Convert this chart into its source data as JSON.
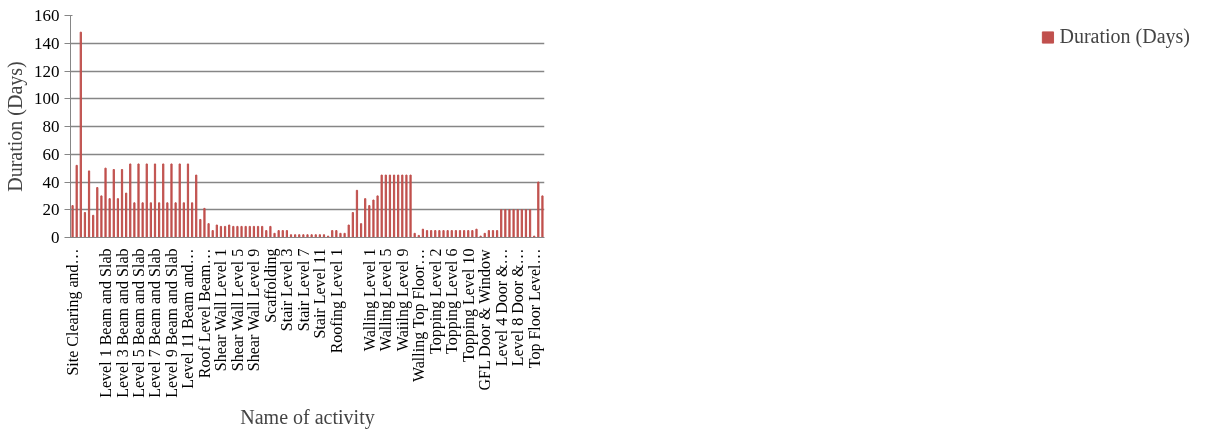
{
  "chart_data": {
    "type": "bar",
    "xlabel": "Name of activity",
    "ylabel": "Duration (Days)",
    "categories": [
      "Site Clearing and…",
      null,
      null,
      null,
      null,
      null,
      null,
      null,
      "Level 1 Beam and Slab",
      null,
      null,
      null,
      "Level 3 Beam and Slab",
      null,
      null,
      null,
      "Level 5 Beam and Slab",
      null,
      null,
      null,
      "Level 7 Beam and Slab",
      null,
      null,
      null,
      "Level 9 Beam and Slab",
      null,
      null,
      null,
      "Level 11 Beam and…",
      null,
      null,
      null,
      "Roof Level Beam…",
      null,
      null,
      null,
      "Shear Wall Level 1",
      null,
      null,
      null,
      "Shear Wall Level 5",
      null,
      null,
      null,
      "Shear Wall Level 9",
      null,
      null,
      null,
      "Scaffolding",
      null,
      null,
      null,
      "Stair Level 3",
      null,
      null,
      null,
      "Stair Level 7",
      null,
      null,
      null,
      "Stair Level 11",
      null,
      null,
      null,
      "Roofing Level 1",
      null,
      null,
      null,
      null,
      null,
      null,
      null,
      "Walling Level 1",
      null,
      null,
      null,
      "Walling Level 5",
      null,
      null,
      null,
      "Waiilng Level 9",
      null,
      null,
      null,
      "Walling Top Floor…",
      null,
      null,
      null,
      "Topping Level 2",
      null,
      null,
      null,
      "Topping Level 6",
      null,
      null,
      null,
      "Topping Level 10",
      null,
      null,
      null,
      "GFL Door & Window",
      null,
      null,
      null,
      "Level 4 Door &…",
      null,
      null,
      null,
      "Level 8 Door &…",
      null,
      null,
      null,
      "Top Floor Level…",
      null,
      null
    ],
    "series": [
      {
        "name": "Duration (Days)",
        "color": "#c0504d",
        "values": [
          23,
          52,
          148,
          18,
          48,
          16,
          36,
          30,
          50,
          28,
          49,
          28,
          49,
          32,
          53,
          25,
          53,
          25,
          53,
          25,
          53,
          25,
          53,
          25,
          53,
          25,
          53,
          25,
          53,
          25,
          45,
          13,
          21,
          10,
          5,
          9,
          8,
          8,
          9,
          8,
          8,
          8,
          8,
          8,
          8,
          8,
          8,
          5,
          8,
          3,
          5,
          5,
          5,
          2,
          2,
          2,
          2,
          2,
          2,
          2,
          2,
          2,
          1,
          5,
          5,
          3,
          3,
          9,
          18,
          34,
          10,
          28,
          23,
          27,
          30,
          45,
          45,
          45,
          45,
          45,
          45,
          45,
          45,
          3,
          1.5,
          6,
          5,
          5,
          5,
          5,
          5,
          5,
          5,
          5,
          5,
          5,
          5,
          5,
          6,
          1,
          3,
          5,
          5,
          5,
          20,
          20,
          20,
          20,
          20,
          20,
          20,
          20,
          1,
          40,
          30
        ]
      }
    ],
    "ylim": [
      0,
      160
    ],
    "yticks": [
      0,
      20,
      40,
      60,
      80,
      100,
      120,
      140,
      160
    ],
    "grid": "y",
    "legend": "right"
  }
}
